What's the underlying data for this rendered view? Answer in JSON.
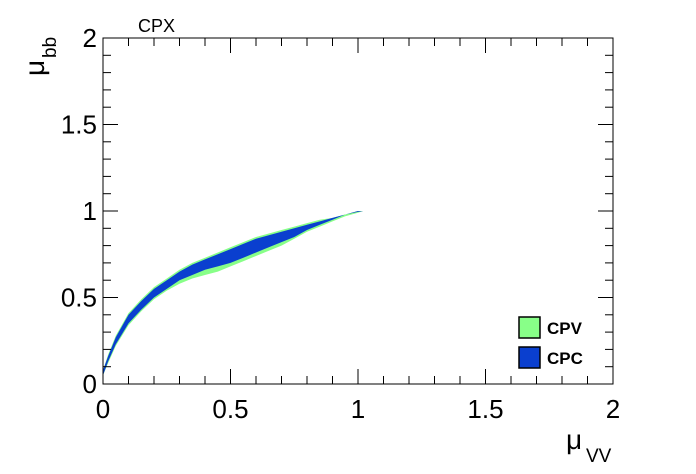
{
  "chart_data": {
    "type": "scatter",
    "title": "CPX",
    "xlabel": {
      "main": "μ",
      "sub": "VV"
    },
    "ylabel": {
      "main": "μ",
      "sub": "bb"
    },
    "xlim": [
      0,
      2
    ],
    "ylim": [
      0,
      2
    ],
    "x_ticks": [
      "0",
      "0.5",
      "1",
      "1.5",
      "2"
    ],
    "y_ticks": [
      "0",
      "0.5",
      "1",
      "1.5",
      "2"
    ],
    "grid": false,
    "legend_placement": "bottom-right",
    "series": [
      {
        "name": "CPV",
        "color": "#88ff88",
        "band": {
          "x": [
            0.0,
            0.02,
            0.05,
            0.1,
            0.15,
            0.2,
            0.25,
            0.3,
            0.35,
            0.4,
            0.45,
            0.5,
            0.55,
            0.6,
            0.65,
            0.7,
            0.75,
            0.8,
            0.85,
            0.9,
            0.95,
            1.0,
            1.02
          ],
          "y_low": [
            0.05,
            0.12,
            0.22,
            0.34,
            0.42,
            0.49,
            0.54,
            0.58,
            0.61,
            0.63,
            0.65,
            0.68,
            0.71,
            0.74,
            0.77,
            0.8,
            0.84,
            0.88,
            0.91,
            0.94,
            0.97,
            0.99,
            1.0
          ],
          "y_high": [
            0.08,
            0.17,
            0.28,
            0.41,
            0.49,
            0.56,
            0.61,
            0.66,
            0.7,
            0.73,
            0.76,
            0.79,
            0.82,
            0.85,
            0.87,
            0.89,
            0.91,
            0.93,
            0.95,
            0.96,
            0.98,
            1.0,
            1.0
          ]
        }
      },
      {
        "name": "CPC",
        "color": "#0a3fcf",
        "band": {
          "x": [
            0.0,
            0.02,
            0.05,
            0.1,
            0.15,
            0.2,
            0.25,
            0.3,
            0.35,
            0.4,
            0.45,
            0.5,
            0.55,
            0.6,
            0.65,
            0.7,
            0.75,
            0.8,
            0.85,
            0.9,
            0.95,
            1.0,
            1.02
          ],
          "y_low": [
            0.05,
            0.13,
            0.23,
            0.35,
            0.43,
            0.5,
            0.55,
            0.6,
            0.63,
            0.66,
            0.68,
            0.7,
            0.73,
            0.76,
            0.79,
            0.82,
            0.85,
            0.89,
            0.92,
            0.95,
            0.98,
            0.995,
            1.0
          ],
          "y_high": [
            0.08,
            0.16,
            0.27,
            0.4,
            0.48,
            0.55,
            0.6,
            0.65,
            0.69,
            0.72,
            0.75,
            0.78,
            0.81,
            0.84,
            0.86,
            0.88,
            0.9,
            0.92,
            0.94,
            0.96,
            0.98,
            1.0,
            1.0
          ]
        }
      }
    ]
  }
}
